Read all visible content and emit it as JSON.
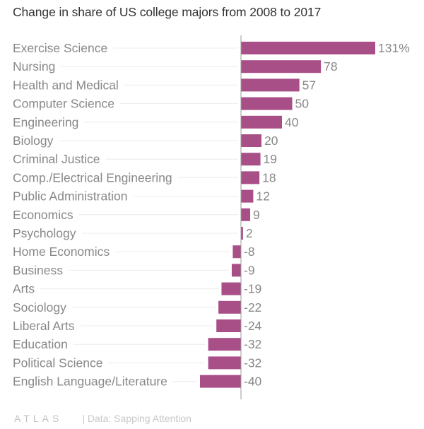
{
  "chart_data": {
    "type": "bar",
    "orientation": "horizontal",
    "title": "Change in share of US college majors from 2008 to 2017",
    "categories": [
      "Exercise Science",
      "Nursing",
      "Health and Medical",
      "Computer Science",
      "Engineering",
      "Biology",
      "Criminal Justice",
      "Comp./Electrical Engineering",
      "Public Administration",
      "Economics",
      "Psychology",
      "Home Economics",
      "Business",
      "Arts",
      "Sociology",
      "Liberal Arts",
      "Education",
      "Political Science",
      "English Language/Literature"
    ],
    "values": [
      131,
      78,
      57,
      50,
      40,
      20,
      19,
      18,
      12,
      9,
      2,
      -8,
      -9,
      -19,
      -22,
      -24,
      -32,
      -32,
      -40
    ],
    "value_labels": [
      "131%",
      "78",
      "57",
      "50",
      "40",
      "20",
      "19",
      "18",
      "12",
      "9",
      "2",
      "-8",
      "-9",
      "-19",
      "-22",
      "-24",
      "-32",
      "-32",
      "-40"
    ],
    "xlabel": "",
    "ylabel": "",
    "bar_color": "#a84f87",
    "grid": false,
    "legend": "none"
  },
  "footer": {
    "logo": "ATLAS",
    "source": "| Data: Sapping Attention"
  }
}
